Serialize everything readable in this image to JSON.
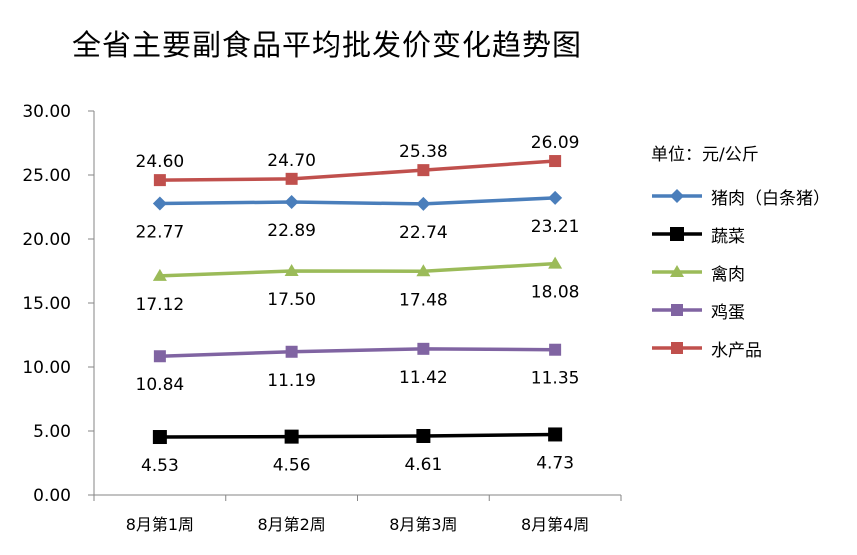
{
  "chart_data": {
    "type": "line",
    "title": "全省主要副食品平均批发价变化趋势图",
    "unit": "单位：元/公斤",
    "categories": [
      "8月第1周",
      "8月第2周",
      "8月第3周",
      "8月第4周"
    ],
    "ylim": [
      0,
      30
    ],
    "yticks": [
      "0.00",
      "5.00",
      "10.00",
      "15.00",
      "20.00",
      "25.00",
      "30.00"
    ],
    "grid": false,
    "legend_position": "right",
    "series": [
      {
        "name": "猪肉（白条猪）",
        "color": "#4A7EBB",
        "marker": "diamond",
        "values": [
          22.77,
          22.89,
          22.74,
          23.21
        ],
        "labels": [
          "22.77",
          "22.89",
          "22.74",
          "23.21"
        ],
        "label_pos": "below"
      },
      {
        "name": "蔬菜",
        "color": "#000000",
        "marker": "square",
        "values": [
          4.53,
          4.56,
          4.61,
          4.73
        ],
        "labels": [
          "4.53",
          "4.56",
          "4.61",
          "4.73"
        ],
        "label_pos": "below"
      },
      {
        "name": "禽肉",
        "color": "#9BBB59",
        "marker": "triangle",
        "values": [
          17.12,
          17.5,
          17.48,
          18.08
        ],
        "labels": [
          "17.12",
          "17.50",
          "17.48",
          "18.08"
        ],
        "label_pos": "below"
      },
      {
        "name": "鸡蛋",
        "color": "#8064A2",
        "marker": "square",
        "values": [
          10.84,
          11.19,
          11.42,
          11.35
        ],
        "labels": [
          "10.84",
          "11.19",
          "11.42",
          "11.35"
        ],
        "label_pos": "below"
      },
      {
        "name": "水产品",
        "color": "#C0504D",
        "marker": "square",
        "values": [
          24.6,
          24.7,
          25.38,
          26.09
        ],
        "labels": [
          "24.60",
          "24.70",
          "25.38",
          "26.09"
        ],
        "label_pos": "above"
      }
    ]
  }
}
